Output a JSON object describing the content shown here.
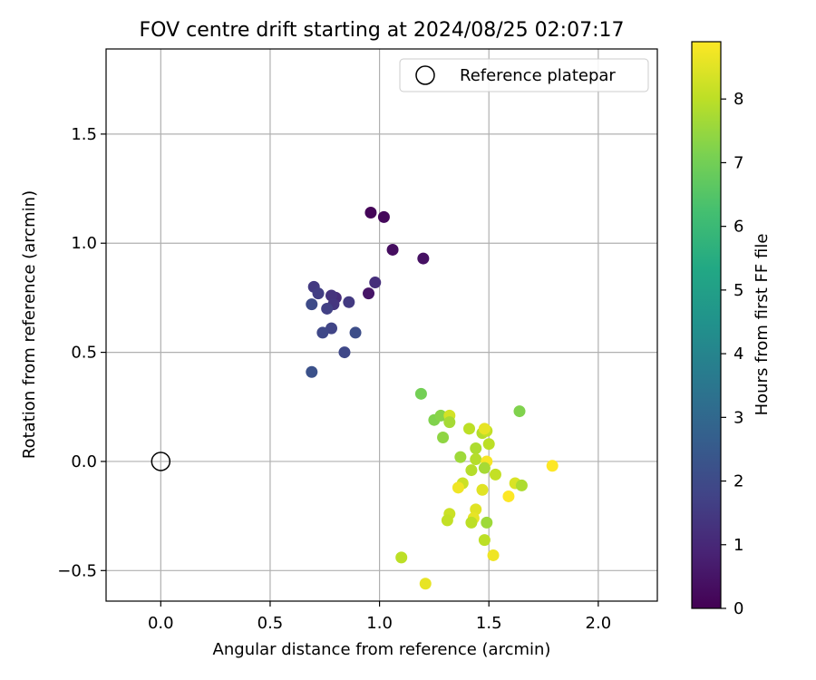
{
  "chart_data": {
    "type": "scatter",
    "title": "FOV centre drift starting at 2024/08/25 02:07:17",
    "xlabel": "Angular distance from reference (arcmin)",
    "ylabel": "Rotation from reference (arcmin)",
    "xlim": [
      -0.25,
      2.27
    ],
    "ylim": [
      -0.64,
      1.89
    ],
    "xticks": [
      0.0,
      0.5,
      1.0,
      1.5,
      2.0
    ],
    "xtick_labels": [
      "0.0",
      "0.5",
      "1.0",
      "1.5",
      "2.0"
    ],
    "yticks": [
      -0.5,
      0.0,
      0.5,
      1.0,
      1.5
    ],
    "ytick_labels": [
      "−0.5",
      "0.0",
      "0.5",
      "1.0",
      "1.5"
    ],
    "grid": true,
    "legend": {
      "placement": "top-right",
      "entries": [
        "Reference platepar"
      ]
    },
    "reference_point": {
      "x": 0.0,
      "y": 0.0,
      "label": "Reference platepar"
    },
    "colorbar": {
      "label": "Hours from first FF file",
      "range": [
        0,
        8.9
      ],
      "ticks": [
        0,
        1,
        2,
        3,
        4,
        5,
        6,
        7,
        8
      ],
      "tick_labels": [
        "0",
        "1",
        "2",
        "3",
        "4",
        "5",
        "6",
        "7",
        "8"
      ],
      "colormap": "viridis"
    },
    "points": [
      {
        "x": 0.96,
        "y": 1.14,
        "t": 0.1
      },
      {
        "x": 1.02,
        "y": 1.12,
        "t": 0.2
      },
      {
        "x": 1.06,
        "y": 0.97,
        "t": 0.3
      },
      {
        "x": 1.2,
        "y": 0.93,
        "t": 0.4
      },
      {
        "x": 0.95,
        "y": 0.77,
        "t": 0.5
      },
      {
        "x": 0.98,
        "y": 0.82,
        "t": 1.2
      },
      {
        "x": 0.8,
        "y": 0.75,
        "t": 1.1
      },
      {
        "x": 0.78,
        "y": 0.76,
        "t": 1.3
      },
      {
        "x": 0.79,
        "y": 0.72,
        "t": 1.4
      },
      {
        "x": 0.86,
        "y": 0.73,
        "t": 1.5
      },
      {
        "x": 0.7,
        "y": 0.8,
        "t": 1.5
      },
      {
        "x": 0.72,
        "y": 0.77,
        "t": 1.6
      },
      {
        "x": 0.76,
        "y": 0.7,
        "t": 1.7
      },
      {
        "x": 0.69,
        "y": 0.72,
        "t": 2.0
      },
      {
        "x": 0.78,
        "y": 0.61,
        "t": 1.8
      },
      {
        "x": 0.74,
        "y": 0.59,
        "t": 1.9
      },
      {
        "x": 0.89,
        "y": 0.59,
        "t": 2.1
      },
      {
        "x": 0.84,
        "y": 0.5,
        "t": 1.9
      },
      {
        "x": 0.69,
        "y": 0.41,
        "t": 2.2
      },
      {
        "x": 1.19,
        "y": 0.31,
        "t": 7.0
      },
      {
        "x": 1.25,
        "y": 0.19,
        "t": 7.2
      },
      {
        "x": 1.28,
        "y": 0.21,
        "t": 7.3
      },
      {
        "x": 1.32,
        "y": 0.21,
        "t": 8.3
      },
      {
        "x": 1.32,
        "y": 0.18,
        "t": 7.7
      },
      {
        "x": 1.29,
        "y": 0.11,
        "t": 7.4
      },
      {
        "x": 1.41,
        "y": 0.15,
        "t": 8.0
      },
      {
        "x": 1.47,
        "y": 0.13,
        "t": 7.9
      },
      {
        "x": 1.49,
        "y": 0.14,
        "t": 8.1
      },
      {
        "x": 1.48,
        "y": 0.15,
        "t": 8.6
      },
      {
        "x": 1.64,
        "y": 0.23,
        "t": 7.2
      },
      {
        "x": 1.44,
        "y": 0.06,
        "t": 7.8
      },
      {
        "x": 1.5,
        "y": 0.08,
        "t": 8.0
      },
      {
        "x": 1.37,
        "y": 0.02,
        "t": 7.6
      },
      {
        "x": 1.44,
        "y": 0.01,
        "t": 7.9
      },
      {
        "x": 1.49,
        "y": 0.0,
        "t": 8.8
      },
      {
        "x": 1.42,
        "y": -0.04,
        "t": 7.9
      },
      {
        "x": 1.48,
        "y": -0.03,
        "t": 7.7
      },
      {
        "x": 1.53,
        "y": -0.06,
        "t": 8.1
      },
      {
        "x": 1.38,
        "y": -0.1,
        "t": 8.2
      },
      {
        "x": 1.36,
        "y": -0.12,
        "t": 8.7
      },
      {
        "x": 1.47,
        "y": -0.13,
        "t": 8.5
      },
      {
        "x": 1.62,
        "y": -0.1,
        "t": 8.4
      },
      {
        "x": 1.65,
        "y": -0.11,
        "t": 7.8
      },
      {
        "x": 1.59,
        "y": -0.16,
        "t": 8.9
      },
      {
        "x": 1.79,
        "y": -0.02,
        "t": 8.9
      },
      {
        "x": 1.44,
        "y": -0.22,
        "t": 8.5
      },
      {
        "x": 1.32,
        "y": -0.24,
        "t": 8.2
      },
      {
        "x": 1.31,
        "y": -0.27,
        "t": 8.1
      },
      {
        "x": 1.43,
        "y": -0.26,
        "t": 8.6
      },
      {
        "x": 1.42,
        "y": -0.28,
        "t": 8.0
      },
      {
        "x": 1.49,
        "y": -0.28,
        "t": 7.6
      },
      {
        "x": 1.48,
        "y": -0.36,
        "t": 8.0
      },
      {
        "x": 1.1,
        "y": -0.44,
        "t": 8.0
      },
      {
        "x": 1.52,
        "y": -0.43,
        "t": 8.7
      },
      {
        "x": 1.21,
        "y": -0.56,
        "t": 8.6
      }
    ]
  }
}
